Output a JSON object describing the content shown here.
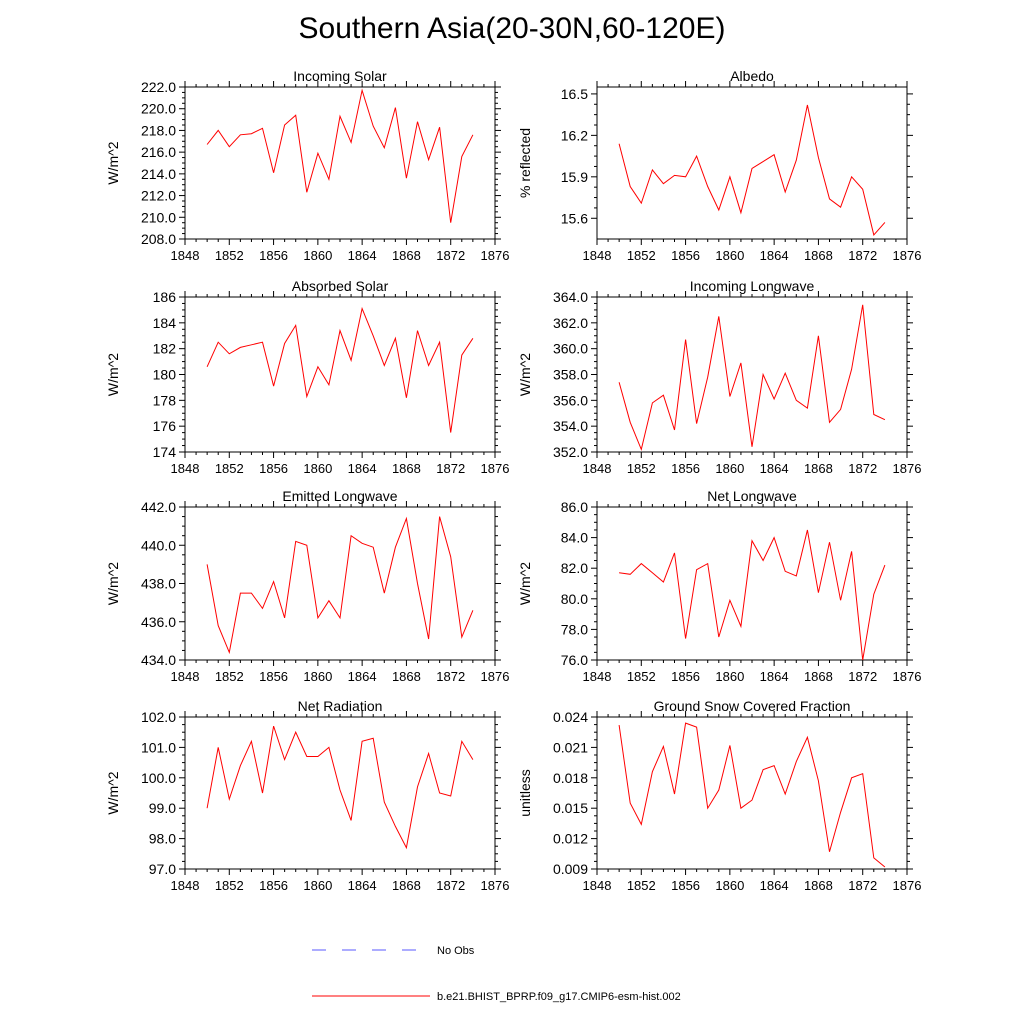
{
  "title": "Southern Asia(20-30N,60-120E)",
  "legend": {
    "entries": [
      {
        "label": "No Obs",
        "color": "#5a5aff",
        "style": "dashed"
      },
      {
        "label": "b.e21.BHIST_BPRP.f09_g17.CMIP6-esm-hist.002",
        "color": "#ff0000",
        "style": "solid"
      }
    ]
  },
  "chart_data": [
    {
      "type": "line",
      "title": "Incoming Solar",
      "ylabel": "W/m^2",
      "xlim": [
        1848,
        1876
      ],
      "ylim": [
        208,
        222
      ],
      "xticks": [
        1848,
        1852,
        1856,
        1860,
        1864,
        1868,
        1872,
        1876
      ],
      "yticks": [
        208,
        210,
        212,
        214,
        216,
        218,
        220,
        222
      ],
      "yticklabels": [
        "208.0",
        "210.0",
        "212.0",
        "214.0",
        "216.0",
        "218.0",
        "220.0",
        "222.0"
      ],
      "x": [
        1850,
        1851,
        1852,
        1853,
        1854,
        1855,
        1856,
        1857,
        1858,
        1859,
        1860,
        1861,
        1862,
        1863,
        1864,
        1865,
        1866,
        1867,
        1868,
        1869,
        1870,
        1871,
        1872,
        1873,
        1874
      ],
      "series": [
        {
          "name": "b.e21.BHIST_BPRP.f09_g17.CMIP6-esm-hist.002",
          "color": "#ff0000",
          "values": [
            216.7,
            218.0,
            216.5,
            217.6,
            217.7,
            218.2,
            214.1,
            218.5,
            219.4,
            212.3,
            215.9,
            213.5,
            219.3,
            216.9,
            221.7,
            218.4,
            216.4,
            220.1,
            213.6,
            218.8,
            215.3,
            218.3,
            209.5,
            215.6,
            217.6
          ]
        }
      ]
    },
    {
      "type": "line",
      "title": "Albedo",
      "ylabel": "% reflected",
      "xlim": [
        1848,
        1876
      ],
      "ylim": [
        15.45,
        16.55
      ],
      "xticks": [
        1848,
        1852,
        1856,
        1860,
        1864,
        1868,
        1872,
        1876
      ],
      "yticks": [
        15.6,
        15.9,
        16.2,
        16.5
      ],
      "yticklabels": [
        "15.6",
        "15.9",
        "16.2",
        "16.5"
      ],
      "x": [
        1850,
        1851,
        1852,
        1853,
        1854,
        1855,
        1856,
        1857,
        1858,
        1859,
        1860,
        1861,
        1862,
        1863,
        1864,
        1865,
        1866,
        1867,
        1868,
        1869,
        1870,
        1871,
        1872,
        1873,
        1874
      ],
      "series": [
        {
          "name": "b.e21.BHIST_BPRP.f09_g17.CMIP6-esm-hist.002",
          "color": "#ff0000",
          "values": [
            16.14,
            15.83,
            15.71,
            15.95,
            15.85,
            15.91,
            15.9,
            16.05,
            15.83,
            15.66,
            15.9,
            15.64,
            15.96,
            16.01,
            16.06,
            15.79,
            16.02,
            16.42,
            16.04,
            15.74,
            15.68,
            15.9,
            15.81,
            15.48,
            15.57
          ]
        }
      ]
    },
    {
      "type": "line",
      "title": "Absorbed Solar",
      "ylabel": "W/m^2",
      "xlim": [
        1848,
        1876
      ],
      "ylim": [
        174,
        186
      ],
      "xticks": [
        1848,
        1852,
        1856,
        1860,
        1864,
        1868,
        1872,
        1876
      ],
      "yticks": [
        174,
        176,
        178,
        180,
        182,
        184,
        186
      ],
      "yticklabels": [
        "174",
        "176",
        "178",
        "180",
        "182",
        "184",
        "186"
      ],
      "x": [
        1850,
        1851,
        1852,
        1853,
        1854,
        1855,
        1856,
        1857,
        1858,
        1859,
        1860,
        1861,
        1862,
        1863,
        1864,
        1865,
        1866,
        1867,
        1868,
        1869,
        1870,
        1871,
        1872,
        1873,
        1874
      ],
      "series": [
        {
          "name": "b.e21.BHIST_BPRP.f09_g17.CMIP6-esm-hist.002",
          "color": "#ff0000",
          "values": [
            180.6,
            182.5,
            181.6,
            182.1,
            182.3,
            182.5,
            179.1,
            182.4,
            183.8,
            178.3,
            180.6,
            179.2,
            183.4,
            181.1,
            185.1,
            183.0,
            180.7,
            182.8,
            178.2,
            183.4,
            180.7,
            182.5,
            175.5,
            181.5,
            182.8
          ]
        }
      ]
    },
    {
      "type": "line",
      "title": "Incoming Longwave",
      "ylabel": "W/m^2",
      "xlim": [
        1848,
        1876
      ],
      "ylim": [
        352,
        364
      ],
      "xticks": [
        1848,
        1852,
        1856,
        1860,
        1864,
        1868,
        1872,
        1876
      ],
      "yticks": [
        352,
        354,
        356,
        358,
        360,
        362,
        364
      ],
      "yticklabels": [
        "352.0",
        "354.0",
        "356.0",
        "358.0",
        "360.0",
        "362.0",
        "364.0"
      ],
      "x": [
        1850,
        1851,
        1852,
        1853,
        1854,
        1855,
        1856,
        1857,
        1858,
        1859,
        1860,
        1861,
        1862,
        1863,
        1864,
        1865,
        1866,
        1867,
        1868,
        1869,
        1870,
        1871,
        1872,
        1873,
        1874
      ],
      "series": [
        {
          "name": "b.e21.BHIST_BPRP.f09_g17.CMIP6-esm-hist.002",
          "color": "#ff0000",
          "values": [
            357.4,
            354.3,
            352.2,
            355.8,
            356.4,
            353.7,
            360.7,
            354.2,
            357.8,
            362.5,
            356.3,
            358.9,
            352.4,
            358.0,
            356.1,
            358.1,
            356.0,
            355.4,
            361.0,
            354.3,
            355.3,
            358.4,
            363.4,
            354.9,
            354.5
          ]
        }
      ]
    },
    {
      "type": "line",
      "title": "Emitted Longwave",
      "ylabel": "W/m^2",
      "xlim": [
        1848,
        1876
      ],
      "ylim": [
        434,
        442
      ],
      "xticks": [
        1848,
        1852,
        1856,
        1860,
        1864,
        1868,
        1872,
        1876
      ],
      "yticks": [
        434,
        436,
        438,
        440,
        442
      ],
      "yticklabels": [
        "434.0",
        "436.0",
        "438.0",
        "440.0",
        "442.0"
      ],
      "x": [
        1850,
        1851,
        1852,
        1853,
        1854,
        1855,
        1856,
        1857,
        1858,
        1859,
        1860,
        1861,
        1862,
        1863,
        1864,
        1865,
        1866,
        1867,
        1868,
        1869,
        1870,
        1871,
        1872,
        1873,
        1874
      ],
      "series": [
        {
          "name": "b.e21.BHIST_BPRP.f09_g17.CMIP6-esm-hist.002",
          "color": "#ff0000",
          "values": [
            439.0,
            435.8,
            434.4,
            437.5,
            437.5,
            436.7,
            438.1,
            436.2,
            440.2,
            440.0,
            436.2,
            437.1,
            436.2,
            440.5,
            440.1,
            439.9,
            437.5,
            439.9,
            441.4,
            438.0,
            435.1,
            441.5,
            439.4,
            435.2,
            436.6
          ]
        }
      ]
    },
    {
      "type": "line",
      "title": "Net Longwave",
      "ylabel": "W/m^2",
      "xlim": [
        1848,
        1876
      ],
      "ylim": [
        76,
        86
      ],
      "xticks": [
        1848,
        1852,
        1856,
        1860,
        1864,
        1868,
        1872,
        1876
      ],
      "yticks": [
        76,
        78,
        80,
        82,
        84,
        86
      ],
      "yticklabels": [
        "76.0",
        "78.0",
        "80.0",
        "82.0",
        "84.0",
        "86.0"
      ],
      "x": [
        1850,
        1851,
        1852,
        1853,
        1854,
        1855,
        1856,
        1857,
        1858,
        1859,
        1860,
        1861,
        1862,
        1863,
        1864,
        1865,
        1866,
        1867,
        1868,
        1869,
        1870,
        1871,
        1872,
        1873,
        1874
      ],
      "series": [
        {
          "name": "b.e21.BHIST_BPRP.f09_g17.CMIP6-esm-hist.002",
          "color": "#ff0000",
          "values": [
            81.7,
            81.6,
            82.3,
            81.7,
            81.1,
            83.0,
            77.4,
            81.9,
            82.3,
            77.5,
            79.9,
            78.2,
            83.8,
            82.5,
            84.0,
            81.8,
            81.5,
            84.5,
            80.4,
            83.7,
            79.9,
            83.1,
            76.0,
            80.3,
            82.2
          ]
        }
      ]
    },
    {
      "type": "line",
      "title": "Net Radiation",
      "ylabel": "W/m^2",
      "xlim": [
        1848,
        1876
      ],
      "ylim": [
        97,
        102
      ],
      "xticks": [
        1848,
        1852,
        1856,
        1860,
        1864,
        1868,
        1872,
        1876
      ],
      "yticks": [
        97,
        98,
        99,
        100,
        101,
        102
      ],
      "yticklabels": [
        "97.0",
        "98.0",
        "99.0",
        "100.0",
        "101.0",
        "102.0"
      ],
      "x": [
        1850,
        1851,
        1852,
        1853,
        1854,
        1855,
        1856,
        1857,
        1858,
        1859,
        1860,
        1861,
        1862,
        1863,
        1864,
        1865,
        1866,
        1867,
        1868,
        1869,
        1870,
        1871,
        1872,
        1873,
        1874
      ],
      "series": [
        {
          "name": "b.e21.BHIST_BPRP.f09_g17.CMIP6-esm-hist.002",
          "color": "#ff0000",
          "values": [
            99.0,
            101.0,
            99.3,
            100.4,
            101.2,
            99.5,
            101.7,
            100.6,
            101.5,
            100.7,
            100.7,
            101.0,
            99.6,
            98.6,
            101.2,
            101.3,
            99.2,
            98.4,
            97.7,
            99.7,
            100.8,
            99.5,
            99.4,
            101.2,
            100.6
          ]
        }
      ]
    },
    {
      "type": "line",
      "title": "Ground Snow Covered Fraction",
      "ylabel": "unitless",
      "xlim": [
        1848,
        1876
      ],
      "ylim": [
        0.009,
        0.024
      ],
      "xticks": [
        1848,
        1852,
        1856,
        1860,
        1864,
        1868,
        1872,
        1876
      ],
      "yticks": [
        0.009,
        0.012,
        0.015,
        0.018,
        0.021,
        0.024
      ],
      "yticklabels": [
        "0.009",
        "0.012",
        "0.015",
        "0.018",
        "0.021",
        "0.024"
      ],
      "x": [
        1850,
        1851,
        1852,
        1853,
        1854,
        1855,
        1856,
        1857,
        1858,
        1859,
        1860,
        1861,
        1862,
        1863,
        1864,
        1865,
        1866,
        1867,
        1868,
        1869,
        1870,
        1871,
        1872,
        1873,
        1874
      ],
      "series": [
        {
          "name": "b.e21.BHIST_BPRP.f09_g17.CMIP6-esm-hist.002",
          "color": "#ff0000",
          "values": [
            0.0232,
            0.0155,
            0.0134,
            0.0186,
            0.0211,
            0.0164,
            0.0234,
            0.023,
            0.015,
            0.0168,
            0.0212,
            0.015,
            0.0158,
            0.0188,
            0.0192,
            0.0164,
            0.0196,
            0.022,
            0.0177,
            0.0107,
            0.0146,
            0.018,
            0.0184,
            0.0101,
            0.0092
          ]
        }
      ]
    }
  ]
}
